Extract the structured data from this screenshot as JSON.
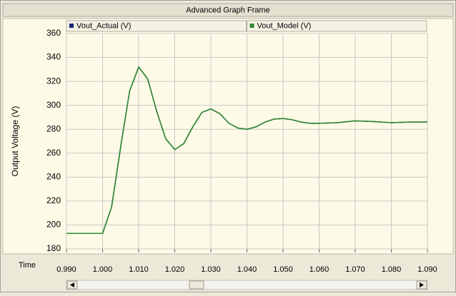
{
  "chart_data": {
    "type": "line",
    "title": "Advanced Graph Frame",
    "ylabel": "Output Voltage (V)",
    "xlabel": "Time",
    "x": [
      0.99,
      0.9925,
      0.995,
      0.9975,
      1.0,
      1.0025,
      1.005,
      1.0075,
      1.01,
      1.0125,
      1.015,
      1.0175,
      1.02,
      1.0225,
      1.025,
      1.0275,
      1.03,
      1.0325,
      1.035,
      1.0375,
      1.04,
      1.0425,
      1.045,
      1.0475,
      1.05,
      1.0525,
      1.055,
      1.0575,
      1.06,
      1.065,
      1.07,
      1.075,
      1.08,
      1.085,
      1.09
    ],
    "series": [
      {
        "name": "Vout_Actual (V)",
        "color": "#1a237e",
        "values": [
          193,
          193,
          193,
          193,
          193,
          215,
          265,
          312,
          332,
          322,
          295,
          272,
          263,
          268,
          282,
          294,
          297,
          293,
          285,
          281,
          280,
          282,
          286,
          288.5,
          289,
          288,
          286,
          285,
          285,
          285.5,
          287,
          286.5,
          285.5,
          286,
          286
        ]
      },
      {
        "name": "Vout_Model (V)",
        "color": "#2e8b2e",
        "values": [
          193,
          193,
          193,
          193,
          193,
          215,
          265,
          312,
          332,
          322,
          295,
          272,
          263,
          268,
          282,
          294,
          297,
          293,
          285,
          281,
          280,
          282,
          286,
          288.5,
          289,
          288,
          286,
          285,
          285,
          285.5,
          287,
          286.5,
          285.5,
          286,
          286
        ]
      }
    ],
    "xlim": [
      0.99,
      1.09
    ],
    "xticks": [
      {
        "value": 0.99,
        "label": "0.990"
      },
      {
        "value": 1.0,
        "label": "1.000"
      },
      {
        "value": 1.01,
        "label": "1.010"
      },
      {
        "value": 1.02,
        "label": "1.020"
      },
      {
        "value": 1.03,
        "label": "1.030"
      },
      {
        "value": 1.04,
        "label": "1.040"
      },
      {
        "value": 1.05,
        "label": "1.050"
      },
      {
        "value": 1.06,
        "label": "1.060"
      },
      {
        "value": 1.07,
        "label": "1.070"
      },
      {
        "value": 1.08,
        "label": "1.080"
      },
      {
        "value": 1.09,
        "label": "1.090"
      }
    ],
    "ylim": [
      180,
      360
    ],
    "yticks": [
      180,
      200,
      220,
      240,
      260,
      280,
      300,
      320,
      340,
      360
    ],
    "grid": true
  }
}
